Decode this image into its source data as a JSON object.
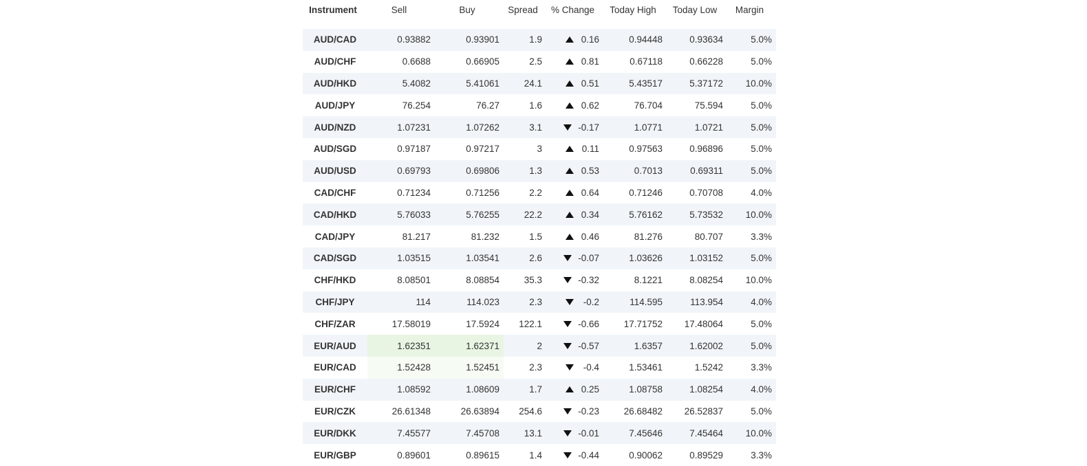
{
  "table": {
    "headers": {
      "instrument": "Instrument",
      "sell": "Sell",
      "buy": "Buy",
      "spread": "Spread",
      "change": "% Change",
      "high": "Today High",
      "low": "Today Low",
      "margin": "Margin"
    },
    "rows": [
      {
        "instrument": "AUD/CAD",
        "sell": "0.93882",
        "buy": "0.93901",
        "spread": "1.9",
        "dir": "up",
        "change": "0.16",
        "high": "0.94448",
        "low": "0.93634",
        "margin": "5.0%"
      },
      {
        "instrument": "AUD/CHF",
        "sell": "0.6688",
        "buy": "0.66905",
        "spread": "2.5",
        "dir": "up",
        "change": "0.81",
        "high": "0.67118",
        "low": "0.66228",
        "margin": "5.0%"
      },
      {
        "instrument": "AUD/HKD",
        "sell": "5.4082",
        "buy": "5.41061",
        "spread": "24.1",
        "dir": "up",
        "change": "0.51",
        "high": "5.43517",
        "low": "5.37172",
        "margin": "10.0%"
      },
      {
        "instrument": "AUD/JPY",
        "sell": "76.254",
        "buy": "76.27",
        "spread": "1.6",
        "dir": "up",
        "change": "0.62",
        "high": "76.704",
        "low": "75.594",
        "margin": "5.0%"
      },
      {
        "instrument": "AUD/NZD",
        "sell": "1.07231",
        "buy": "1.07262",
        "spread": "3.1",
        "dir": "down",
        "change": "-0.17",
        "high": "1.0771",
        "low": "1.0721",
        "margin": "5.0%"
      },
      {
        "instrument": "AUD/SGD",
        "sell": "0.97187",
        "buy": "0.97217",
        "spread": "3",
        "dir": "up",
        "change": "0.11",
        "high": "0.97563",
        "low": "0.96896",
        "margin": "5.0%"
      },
      {
        "instrument": "AUD/USD",
        "sell": "0.69793",
        "buy": "0.69806",
        "spread": "1.3",
        "dir": "up",
        "change": "0.53",
        "high": "0.7013",
        "low": "0.69311",
        "margin": "5.0%"
      },
      {
        "instrument": "CAD/CHF",
        "sell": "0.71234",
        "buy": "0.71256",
        "spread": "2.2",
        "dir": "up",
        "change": "0.64",
        "high": "0.71246",
        "low": "0.70708",
        "margin": "4.0%"
      },
      {
        "instrument": "CAD/HKD",
        "sell": "5.76033",
        "buy": "5.76255",
        "spread": "22.2",
        "dir": "up",
        "change": "0.34",
        "high": "5.76162",
        "low": "5.73532",
        "margin": "10.0%"
      },
      {
        "instrument": "CAD/JPY",
        "sell": "81.217",
        "buy": "81.232",
        "spread": "1.5",
        "dir": "up",
        "change": "0.46",
        "high": "81.276",
        "low": "80.707",
        "margin": "3.3%"
      },
      {
        "instrument": "CAD/SGD",
        "sell": "1.03515",
        "buy": "1.03541",
        "spread": "2.6",
        "dir": "down",
        "change": "-0.07",
        "high": "1.03626",
        "low": "1.03152",
        "margin": "5.0%"
      },
      {
        "instrument": "CHF/HKD",
        "sell": "8.08501",
        "buy": "8.08854",
        "spread": "35.3",
        "dir": "down",
        "change": "-0.32",
        "high": "8.1221",
        "low": "8.08254",
        "margin": "10.0%"
      },
      {
        "instrument": "CHF/JPY",
        "sell": "114",
        "buy": "114.023",
        "spread": "2.3",
        "dir": "down",
        "change": "-0.2",
        "high": "114.595",
        "low": "113.954",
        "margin": "4.0%"
      },
      {
        "instrument": "CHF/ZAR",
        "sell": "17.58019",
        "buy": "17.5924",
        "spread": "122.1",
        "dir": "down",
        "change": "-0.66",
        "high": "17.71752",
        "low": "17.48064",
        "margin": "5.0%"
      },
      {
        "instrument": "EUR/AUD",
        "sell": "1.62351",
        "buy": "1.62371",
        "spread": "2",
        "dir": "down",
        "change": "-0.57",
        "high": "1.6357",
        "low": "1.62002",
        "margin": "5.0%",
        "flash": "strong"
      },
      {
        "instrument": "EUR/CAD",
        "sell": "1.52428",
        "buy": "1.52451",
        "spread": "2.3",
        "dir": "down",
        "change": "-0.4",
        "high": "1.53461",
        "low": "1.5242",
        "margin": "3.3%",
        "flash": "faint"
      },
      {
        "instrument": "EUR/CHF",
        "sell": "1.08592",
        "buy": "1.08609",
        "spread": "1.7",
        "dir": "up",
        "change": "0.25",
        "high": "1.08758",
        "low": "1.08254",
        "margin": "4.0%"
      },
      {
        "instrument": "EUR/CZK",
        "sell": "26.61348",
        "buy": "26.63894",
        "spread": "254.6",
        "dir": "down",
        "change": "-0.23",
        "high": "26.68482",
        "low": "26.52837",
        "margin": "5.0%"
      },
      {
        "instrument": "EUR/DKK",
        "sell": "7.45577",
        "buy": "7.45708",
        "spread": "13.1",
        "dir": "down",
        "change": "-0.01",
        "high": "7.45646",
        "low": "7.45464",
        "margin": "10.0%"
      },
      {
        "instrument": "EUR/GBP",
        "sell": "0.89601",
        "buy": "0.89615",
        "spread": "1.4",
        "dir": "down",
        "change": "-0.44",
        "high": "0.90062",
        "low": "0.89529",
        "margin": "3.3%"
      }
    ],
    "colors": {
      "row_stripe": "#f1f5f9",
      "flash_green": "#e8f5e3",
      "text": "#333333"
    },
    "icons": {
      "up": "triangle-up-icon",
      "down": "triangle-down-icon"
    }
  }
}
